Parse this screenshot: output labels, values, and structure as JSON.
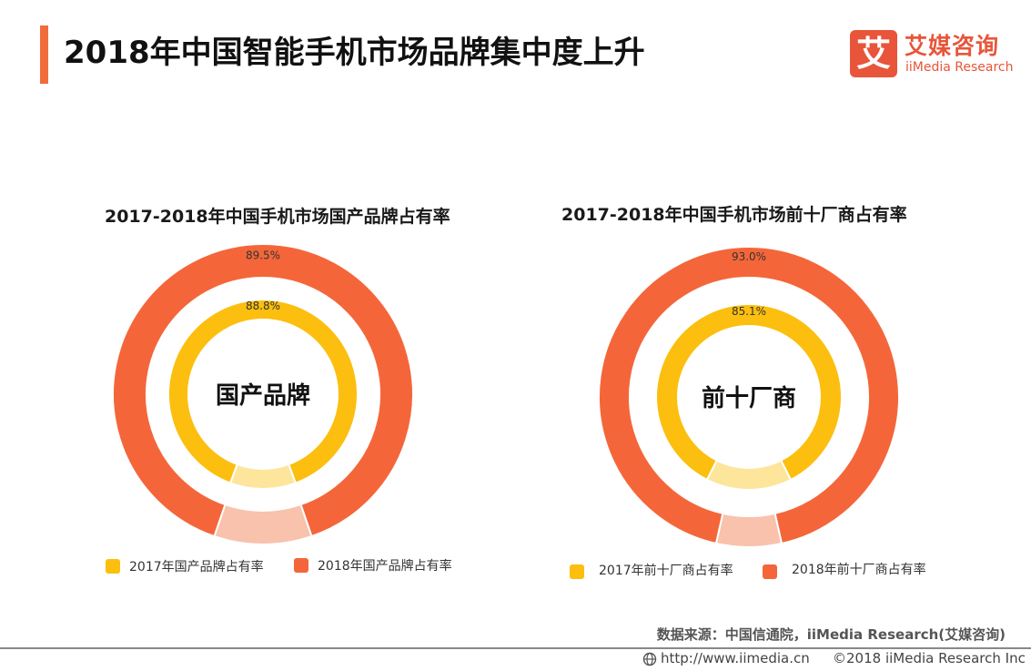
{
  "header": {
    "title": "2018年中国智能手机市场品牌集中度上升",
    "logo_mark": "艾",
    "logo_cn": "艾媒咨询",
    "logo_en": "iiMedia Research"
  },
  "colors": {
    "accent": "#f26b3a",
    "outer": "#f4663a",
    "outer_rest": "#f8c2ad",
    "inner": "#fcbf0f",
    "inner_rest": "#fde59b"
  },
  "chart_data": [
    {
      "type": "donut",
      "title": "2017-2018年中国手机市场国产品牌占有率",
      "center_label": "国产品牌",
      "series": [
        {
          "name": "2017年国产品牌占有率",
          "value": 88.8,
          "label": "88.8%",
          "ring": "inner"
        },
        {
          "name": "2018年国产品牌占有率",
          "value": 89.5,
          "label": "89.5%",
          "ring": "outer"
        }
      ]
    },
    {
      "type": "donut",
      "title": "2017-2018年中国手机市场前十厂商占有率",
      "center_label": "前十厂商",
      "series": [
        {
          "name": "2017年前十厂商占有率",
          "value": 85.1,
          "label": "85.1%",
          "ring": "inner"
        },
        {
          "name": "2018年前十厂商占有率",
          "value": 93.0,
          "label": "93.0%",
          "ring": "outer"
        }
      ]
    }
  ],
  "footer": {
    "source": "数据来源：中国信通院，iiMedia Research(艾媒咨询)",
    "url": "http://www.iimedia.cn",
    "copyright": "©2018  iiMedia Research  Inc"
  }
}
